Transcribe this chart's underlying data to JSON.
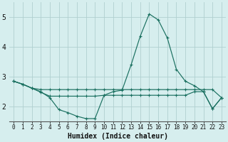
{
  "xlabel": "Humidex (Indice chaleur)",
  "bg_color": "#d6eeee",
  "grid_color": "#b0d0d0",
  "line_color": "#1a7060",
  "xlim": [
    -0.5,
    23.5
  ],
  "ylim": [
    1.5,
    5.5
  ],
  "yticks": [
    2,
    3,
    4,
    5
  ],
  "xticks": [
    0,
    1,
    2,
    3,
    4,
    5,
    6,
    7,
    8,
    9,
    10,
    11,
    12,
    13,
    14,
    15,
    16,
    17,
    18,
    19,
    20,
    21,
    22,
    23
  ],
  "series": [
    {
      "x": [
        0,
        1,
        2,
        3,
        4,
        5,
        6,
        7,
        8,
        9,
        10,
        11,
        12,
        13,
        14,
        15,
        16,
        17,
        18,
        19,
        20,
        21,
        22,
        23
      ],
      "y": [
        2.85,
        2.75,
        2.62,
        2.57,
        2.57,
        2.57,
        2.57,
        2.57,
        2.57,
        2.57,
        2.57,
        2.57,
        2.57,
        2.57,
        2.57,
        2.57,
        2.57,
        2.57,
        2.57,
        2.57,
        2.57,
        2.57,
        2.57,
        2.3
      ]
    },
    {
      "x": [
        0,
        1,
        2,
        3,
        4,
        5,
        6,
        7,
        8,
        9,
        10,
        11,
        12,
        13,
        14,
        15,
        16,
        17,
        18,
        19,
        20,
        21,
        22,
        23
      ],
      "y": [
        2.85,
        2.75,
        2.62,
        2.48,
        2.35,
        2.35,
        2.35,
        2.35,
        2.35,
        2.35,
        2.38,
        2.38,
        2.38,
        2.38,
        2.38,
        2.38,
        2.38,
        2.38,
        2.38,
        2.38,
        2.5,
        2.5,
        1.93,
        2.3
      ]
    },
    {
      "x": [
        0,
        1,
        2,
        3,
        4,
        5,
        6,
        7,
        8,
        9,
        10,
        11,
        12,
        13,
        14,
        15,
        16,
        17,
        18,
        19,
        20,
        21,
        22,
        23
      ],
      "y": [
        2.85,
        2.75,
        2.62,
        2.5,
        2.3,
        1.9,
        1.8,
        1.68,
        1.6,
        1.6,
        2.38,
        2.5,
        2.55,
        3.4,
        4.35,
        5.1,
        4.9,
        4.3,
        3.25,
        2.85,
        2.7,
        2.5,
        1.93,
        2.3
      ]
    }
  ]
}
